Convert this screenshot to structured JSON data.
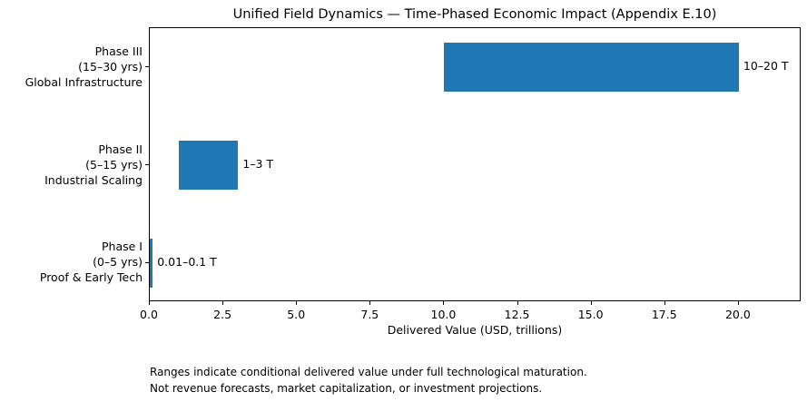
{
  "chart_data": {
    "type": "bar",
    "orientation": "horizontal",
    "title": "Unified Field Dynamics — Time-Phased Economic Impact (Appendix E.10)",
    "xlabel": "Delivered Value (USD, trillions)",
    "ylabel": "",
    "xlim": [
      0,
      22.13
    ],
    "grid": false,
    "legend": false,
    "bar_color": "#1f77b4",
    "text_color": "#000000",
    "bars": [
      {
        "category_lines": [
          "Phase III",
          "(15–30 yrs)",
          "Global Infrastructure"
        ],
        "start": 10,
        "end": 20,
        "value_label": "10–20 T"
      },
      {
        "category_lines": [
          "Phase II",
          "(5–15 yrs)",
          "Industrial Scaling"
        ],
        "start": 1,
        "end": 3,
        "value_label": "1–3 T"
      },
      {
        "category_lines": [
          "Phase I",
          "(0–5 yrs)",
          "Proof & Early Tech"
        ],
        "start": 0.01,
        "end": 0.1,
        "value_label": "0.01–0.1 T"
      }
    ],
    "x_ticks": [
      {
        "value": 0,
        "label": "0.0"
      },
      {
        "value": 2.5,
        "label": "2.5"
      },
      {
        "value": 5,
        "label": "5.0"
      },
      {
        "value": 7.5,
        "label": "7.5"
      },
      {
        "value": 10,
        "label": "10.0"
      },
      {
        "value": 12.5,
        "label": "12.5"
      },
      {
        "value": 15,
        "label": "15.0"
      },
      {
        "value": 17.5,
        "label": "17.5"
      },
      {
        "value": 20,
        "label": "20.0"
      }
    ]
  },
  "footnote": {
    "line1": "Ranges indicate conditional delivered value under full technological maturation.",
    "line2": "Not revenue forecasts, market capitalization, or investment projections."
  }
}
